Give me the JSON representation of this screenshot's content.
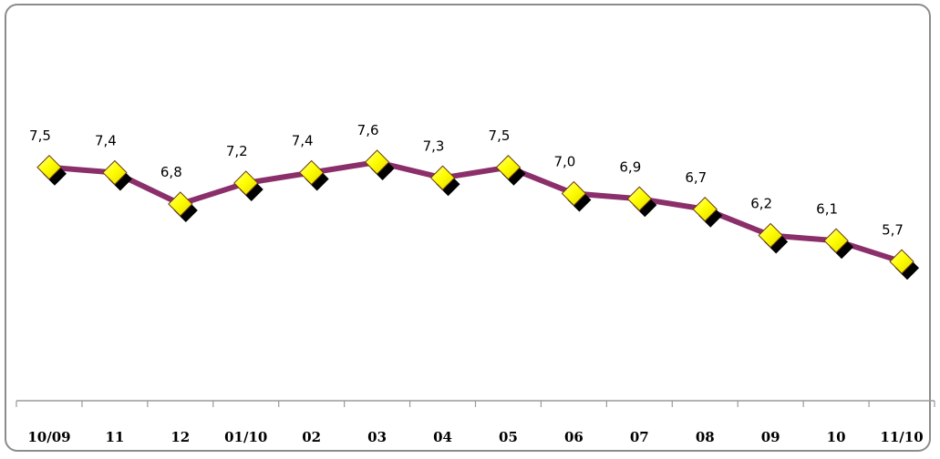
{
  "chart_data": {
    "type": "line",
    "categories": [
      "10/09",
      "11",
      "12",
      "01/10",
      "02",
      "03",
      "04",
      "05",
      "06",
      "07",
      "08",
      "09",
      "10",
      "11/10"
    ],
    "series": [
      {
        "values": [
          7.5,
          7.4,
          6.8,
          7.2,
          7.4,
          7.6,
          7.3,
          7.5,
          7.0,
          6.9,
          6.7,
          6.2,
          6.1,
          5.7
        ],
        "data_labels": [
          "7,5",
          "7,4",
          "6,8",
          "7,2",
          "7,4",
          "7,6",
          "7,3",
          "7,5",
          "7,0",
          "6,9",
          "6,7",
          "6,2",
          "6,1",
          "5,7"
        ]
      }
    ],
    "ylim": [
      0,
      9
    ],
    "grid": false,
    "legend": "none",
    "line_color": "#8B2F6B",
    "marker_color": "#FFFF00",
    "marker_shape": "diamond"
  }
}
